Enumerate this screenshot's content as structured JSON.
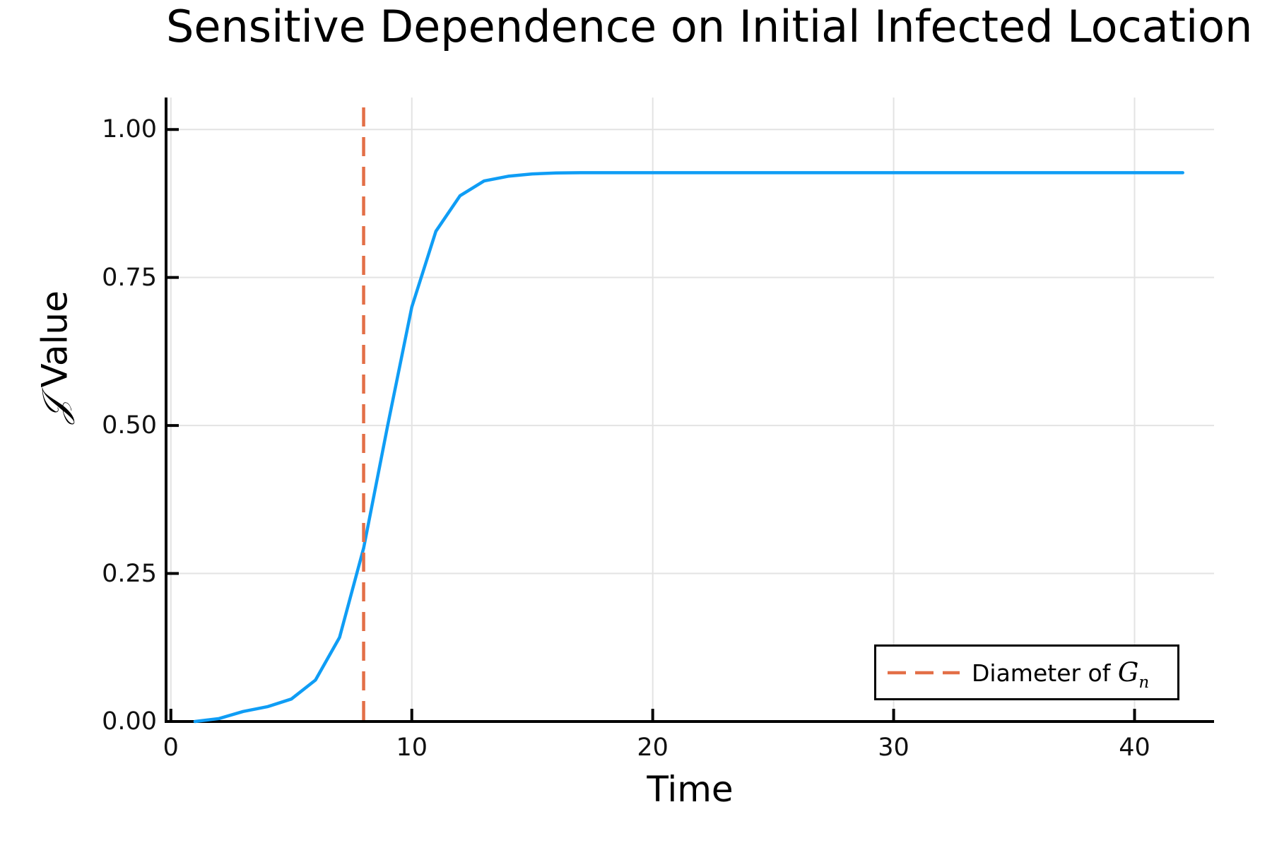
{
  "figure": {
    "title": "Sensitive Dependence on Initial Infected Location",
    "xlabel": "Time",
    "ylabel": "𝒥 Value",
    "ylabel_symbol": "𝒥",
    "ylabel_text": " Value",
    "legend": {
      "label_prefix": "Diameter of ",
      "label_var": "G",
      "label_subscript": "n",
      "line_style": "dashed",
      "line_color": "#e36f47"
    }
  },
  "chart_data": {
    "type": "line",
    "title": "Sensitive Dependence on Initial Infected Location",
    "xlabel": "Time",
    "ylabel": "𝒥 Value",
    "xlim": [
      -0.2,
      43.3
    ],
    "ylim": [
      0,
      1.054
    ],
    "grid": true,
    "grid_color": "#e3e3e3",
    "axis_color": "#000000",
    "legend_position": "bottom-right",
    "xticks": {
      "values": [
        0,
        10,
        20,
        30,
        40
      ],
      "labels": [
        "0",
        "10",
        "20",
        "30",
        "40"
      ]
    },
    "yticks": {
      "values": [
        0,
        0.25,
        0.5,
        0.75,
        1.0
      ],
      "labels": [
        "0.00",
        "0.25",
        "0.50",
        "0.75",
        "1.00"
      ]
    },
    "series": [
      {
        "color": "#0f9df5",
        "style": "solid",
        "x": [
          1,
          2,
          3,
          4,
          5,
          6,
          7,
          8,
          9,
          10,
          11,
          12,
          13,
          14,
          15,
          16,
          17,
          18,
          19,
          20,
          21,
          22,
          23,
          24,
          25,
          26,
          27,
          28,
          29,
          30,
          31,
          32,
          33,
          34,
          35,
          36,
          37,
          38,
          39,
          40,
          41,
          42
        ],
        "y": [
          0.0,
          0.005,
          0.017,
          0.025,
          0.038,
          0.07,
          0.142,
          0.293,
          0.5,
          0.7,
          0.828,
          0.888,
          0.913,
          0.921,
          0.925,
          0.9265,
          0.927,
          0.927,
          0.927,
          0.927,
          0.927,
          0.927,
          0.927,
          0.927,
          0.927,
          0.927,
          0.927,
          0.927,
          0.927,
          0.927,
          0.927,
          0.927,
          0.927,
          0.927,
          0.927,
          0.927,
          0.927,
          0.927,
          0.927,
          0.927,
          0.927,
          0.927
        ]
      }
    ],
    "vline": {
      "x": 8,
      "color": "#e36f47",
      "style": "dashed",
      "label": "Diameter of Gₙ"
    }
  }
}
